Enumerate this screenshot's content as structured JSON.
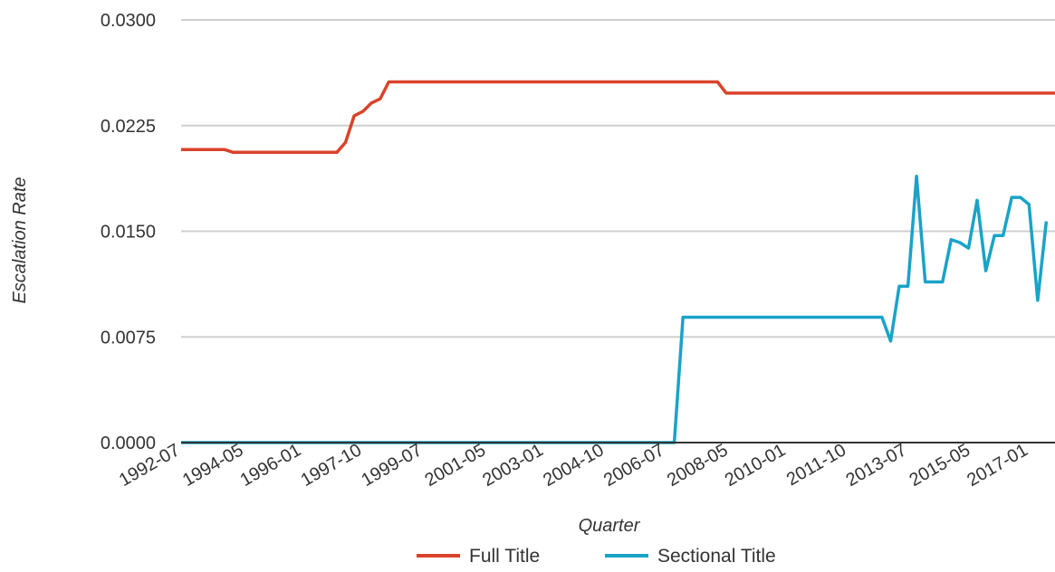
{
  "chart_data": {
    "type": "line",
    "title": "",
    "xlabel": "Quarter",
    "ylabel": "Escalation Rate",
    "ylim": [
      0,
      0.03
    ],
    "yticks": [
      "0.0000",
      "0.0075",
      "0.0150",
      "0.0225",
      "0.0300"
    ],
    "xticks": [
      "1992-07",
      "1994-05",
      "1996-01",
      "1997-10",
      "1999-07",
      "2001-05",
      "2003-01",
      "2004-10",
      "2006-07",
      "2008-05",
      "2010-01",
      "2011-10",
      "2013-07",
      "2015-05",
      "2017-01"
    ],
    "grid": "horizontal",
    "legend_position": "bottom",
    "x_start": "1992-07",
    "x_end": "2017-10",
    "series": [
      {
        "name": "Full Title",
        "color": "#d9432b",
        "points": [
          [
            "1992-07",
            0.0208
          ],
          [
            "1993-10",
            0.0208
          ],
          [
            "1994-01",
            0.0206
          ],
          [
            "1995-07",
            0.0206
          ],
          [
            "1997-01",
            0.0206
          ],
          [
            "1997-04",
            0.0213
          ],
          [
            "1997-07",
            0.0232
          ],
          [
            "1997-10",
            0.0235
          ],
          [
            "1998-01",
            0.0241
          ],
          [
            "1998-04",
            0.0244
          ],
          [
            "1998-07",
            0.0256
          ],
          [
            "2001-07",
            0.0256
          ],
          [
            "2004-07",
            0.0256
          ],
          [
            "2006-07",
            0.0256
          ],
          [
            "2008-01",
            0.0256
          ],
          [
            "2008-04",
            0.0248
          ],
          [
            "2012-07",
            0.0248
          ],
          [
            "2017-10",
            0.0248
          ]
        ]
      },
      {
        "name": "Sectional Title",
        "color": "#1aa3c8",
        "points": [
          [
            "1992-07",
            0.0
          ],
          [
            "1998-07",
            0.0
          ],
          [
            "2004-07",
            0.0
          ],
          [
            "2006-10",
            0.0
          ],
          [
            "2007-01",
            0.0089
          ],
          [
            "2010-07",
            0.0089
          ],
          [
            "2012-07",
            0.0089
          ],
          [
            "2012-10",
            0.0089
          ],
          [
            "2013-01",
            0.0072
          ],
          [
            "2013-04",
            0.0111
          ],
          [
            "2013-07",
            0.0111
          ],
          [
            "2013-10",
            0.0189
          ],
          [
            "2014-01",
            0.0114
          ],
          [
            "2014-04",
            0.0114
          ],
          [
            "2014-07",
            0.0114
          ],
          [
            "2014-10",
            0.0144
          ],
          [
            "2015-01",
            0.0142
          ],
          [
            "2015-04",
            0.0138
          ],
          [
            "2015-07",
            0.0172
          ],
          [
            "2015-10",
            0.0122
          ],
          [
            "2016-01",
            0.0147
          ],
          [
            "2016-04",
            0.0147
          ],
          [
            "2016-07",
            0.0174
          ],
          [
            "2016-10",
            0.0174
          ],
          [
            "2017-01",
            0.0169
          ],
          [
            "2017-04",
            0.0101
          ],
          [
            "2017-07",
            0.0157
          ]
        ]
      }
    ]
  }
}
